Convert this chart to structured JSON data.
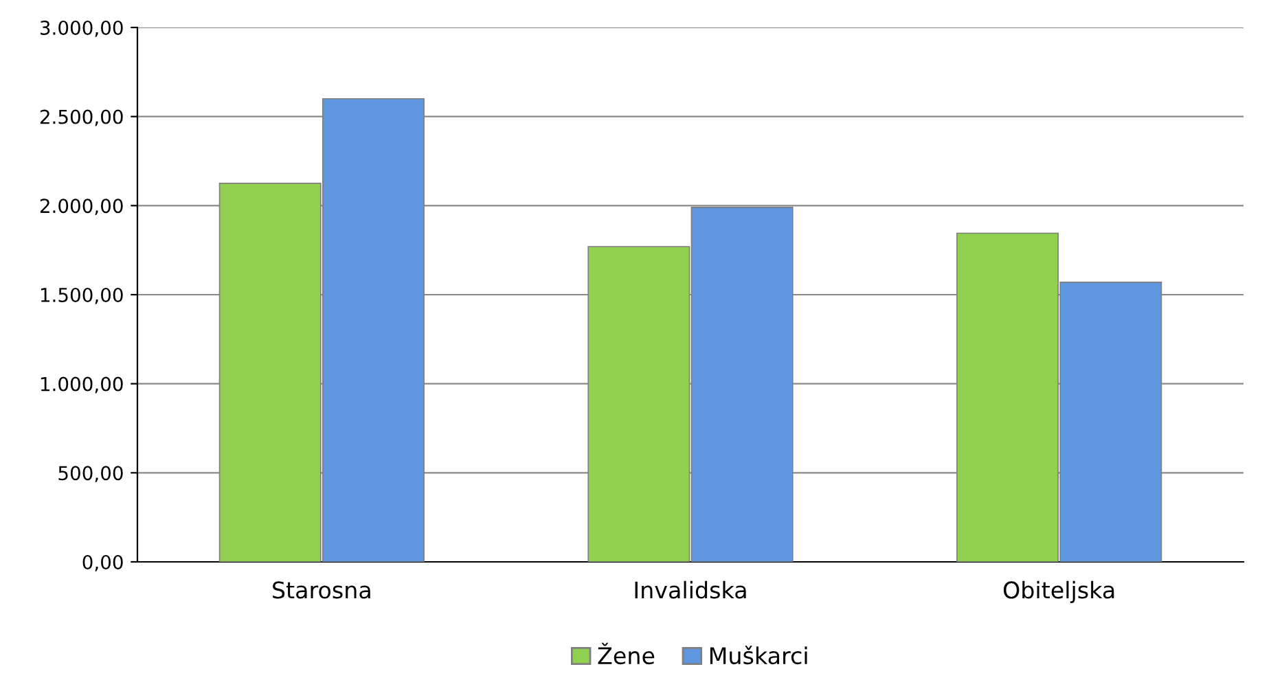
{
  "chart_data": {
    "type": "bar",
    "categories": [
      "Starosna",
      "Invalidska",
      "Obiteljska"
    ],
    "series": [
      {
        "name": "Žene",
        "color": "#92d050",
        "values": [
          2125,
          1770,
          1845
        ]
      },
      {
        "name": "Muškarci",
        "color": "#5e97e0",
        "values": [
          2600,
          1990,
          1570
        ]
      }
    ],
    "ylim": [
      0,
      3000
    ],
    "yticks": [
      {
        "value": 0,
        "label": "0,00"
      },
      {
        "value": 500,
        "label": "500,00"
      },
      {
        "value": 1000,
        "label": "1.000,00"
      },
      {
        "value": 1500,
        "label": "1.500,00"
      },
      {
        "value": 2000,
        "label": "2.000,00"
      },
      {
        "value": 2500,
        "label": "2.500,00"
      },
      {
        "value": 3000,
        "label": "3.000,00"
      }
    ],
    "grid": "y",
    "legend": "bottom"
  }
}
